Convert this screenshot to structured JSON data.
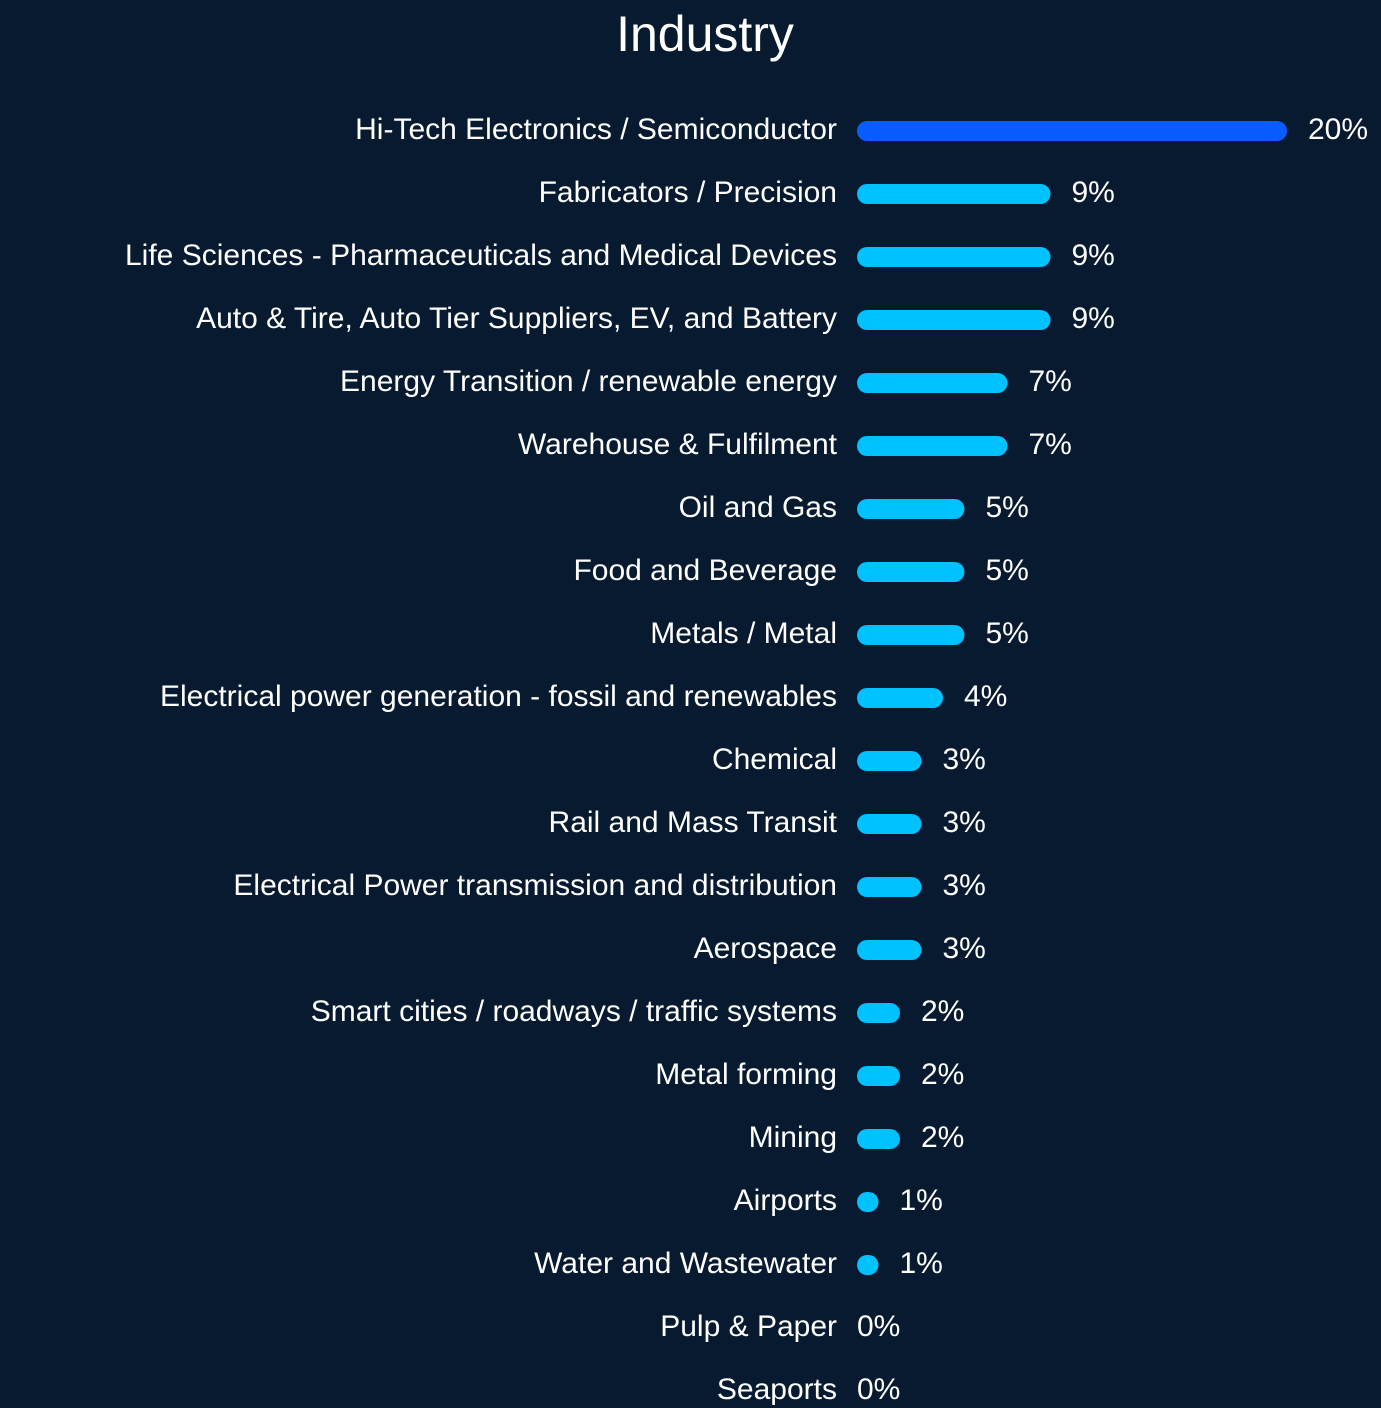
{
  "chart_data": {
    "type": "bar",
    "orientation": "horizontal",
    "title": "Industry",
    "categories": [
      "Hi-Tech Electronics / Semiconductor",
      "Fabricators / Precision",
      "Life Sciences - Pharmaceuticals and Medical Devices",
      "Auto & Tire, Auto Tier Suppliers, EV, and Battery",
      "Energy Transition / renewable energy",
      "Warehouse & Fulfilment",
      "Oil and Gas",
      "Food and Beverage",
      "Metals / Metal",
      "Electrical power generation - fossil and renewables",
      "Chemical",
      "Rail and Mass Transit",
      "Electrical Power transmission and distribution",
      "Aerospace",
      "Smart cities / roadways / traffic systems",
      "Metal forming",
      "Mining",
      "Airports",
      "Water and Wastewater",
      "Pulp & Paper",
      "Seaports"
    ],
    "values": [
      20,
      9,
      9,
      9,
      7,
      7,
      5,
      5,
      5,
      4,
      3,
      3,
      3,
      3,
      2,
      2,
      2,
      1,
      1,
      0,
      0
    ],
    "value_labels": [
      "20%",
      "9%",
      "9%",
      "9%",
      "7%",
      "7%",
      "5%",
      "5%",
      "5%",
      "4%",
      "3%",
      "3%",
      "3%",
      "3%",
      "2%",
      "2%",
      "2%",
      "1%",
      "1%",
      "0%",
      "0%"
    ],
    "colors": [
      "#0b5cff",
      "#00c2ff",
      "#00c2ff",
      "#00c2ff",
      "#00c2ff",
      "#00c2ff",
      "#00c2ff",
      "#00c2ff",
      "#00c2ff",
      "#00c2ff",
      "#00c2ff",
      "#00c2ff",
      "#00c2ff",
      "#00c2ff",
      "#00c2ff",
      "#00c2ff",
      "#00c2ff",
      "#00c2ff",
      "#00c2ff",
      "#00c2ff",
      "#00c2ff"
    ]
  }
}
